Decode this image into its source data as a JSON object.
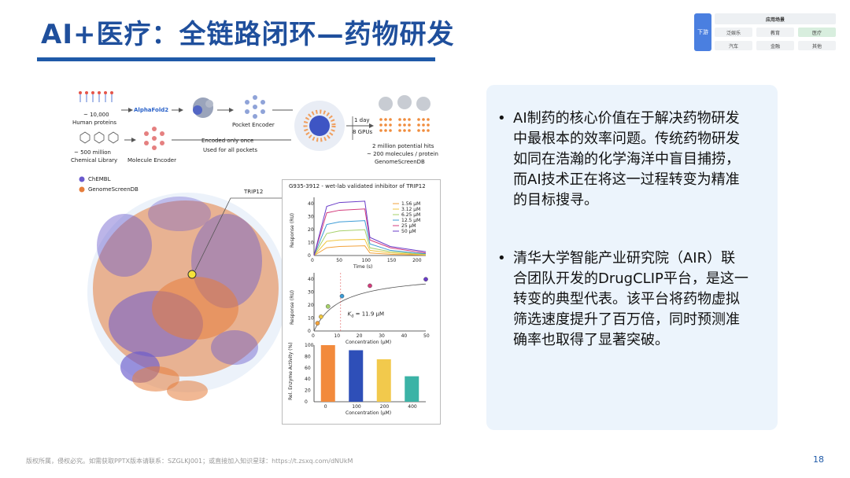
{
  "slide": {
    "title": "AI+医疗：全链路闭环—药物研发",
    "page_number": "18",
    "footer": "版权所属，侵权必究。如需获取PPTX版本请联系：SZGLKJ001；或直接加入知识星球：https://t.zsxq.com/dNUkM"
  },
  "nav": {
    "side_label": "下游",
    "header": "应用场景",
    "items": [
      "泛娱乐",
      "教育",
      "医疗",
      "汽车",
      "金融",
      "其他"
    ],
    "active": "医疗"
  },
  "figure": {
    "pipeline": {
      "human_proteins_count": "~ 10,000",
      "human_proteins": "Human proteins",
      "alphafold": "AlphaFold2",
      "pocket_encoder": "Pocket Encoder",
      "chem_count": "~ 500 million",
      "chem_library": "Chemical Library",
      "molecule_encoder": "Molecule Encoder",
      "encoded_once": "Encoded only once",
      "used_for_all": "Used for all pockets",
      "time": "1 day",
      "gpus": "8 GPUs",
      "hits": "2 million potential hits",
      "per_protein": "~ 200 molecules / protein",
      "db": "GenomeScreenDB"
    },
    "legend": [
      "ChEMBL",
      "GenomeScreenDB"
    ],
    "trip12_label": "TRIP12",
    "panel_title": "G935-3912 - wet-lab validated inhibitor of TRIP12",
    "chart1": {
      "ylabel": "Response (RU)",
      "xlabel": "Time (s)",
      "yticks": [
        "0",
        "10",
        "20",
        "30",
        "40"
      ],
      "xticks": [
        "0",
        "50",
        "100",
        "150",
        "200"
      ],
      "legend": [
        "1.56 μM",
        "3.12 μM",
        "6.25 μM",
        "12.5 μM",
        "25 μM",
        "50 μM"
      ]
    },
    "chart2": {
      "ylabel": "Response (RU)",
      "xlabel": "Concentration (μM)",
      "annotation": "K",
      "annotation_sub": "d",
      "annotation_value": " = 11.9 μM",
      "yticks": [
        "0",
        "10",
        "20",
        "30",
        "40"
      ],
      "xticks": [
        "0",
        "10",
        "20",
        "30",
        "40",
        "50"
      ]
    },
    "chart3": {
      "ylabel": "Rel. Enzyme Activity (%)",
      "xlabel": "Concentration (μM)",
      "yticks": [
        "0",
        "20",
        "40",
        "60",
        "80",
        "100"
      ]
    }
  },
  "chart_data": [
    {
      "type": "line",
      "x": [
        0,
        25,
        50,
        100,
        110,
        150,
        200,
        220
      ],
      "series": [
        {
          "name": "1.56 μM",
          "values": [
            0,
            6,
            7,
            7.5,
            2,
            1,
            0.5,
            0.3
          ]
        },
        {
          "name": "3.12 μM",
          "values": [
            0,
            11,
            12,
            12.5,
            4,
            2,
            1,
            0.5
          ]
        },
        {
          "name": "6.25 μM",
          "values": [
            0,
            17,
            19,
            20,
            6,
            3,
            1.5,
            1
          ]
        },
        {
          "name": "12.5 μM",
          "values": [
            0,
            24,
            26,
            27,
            9,
            4,
            2,
            1.5
          ]
        },
        {
          "name": "25 μM",
          "values": [
            0,
            33,
            35,
            36,
            12,
            6,
            3,
            2
          ]
        },
        {
          "name": "50 μM",
          "values": [
            0,
            38,
            41,
            42,
            14,
            7,
            4,
            3
          ]
        }
      ],
      "ylim": [
        0,
        45
      ],
      "xlim": [
        0,
        220
      ]
    },
    {
      "type": "scatter",
      "x": [
        1.56,
        3.12,
        6.25,
        12.5,
        25,
        50
      ],
      "values": [
        6,
        11,
        19,
        27,
        35,
        40
      ],
      "ylim": [
        0,
        45
      ],
      "xlim": [
        0,
        50
      ]
    },
    {
      "type": "bar",
      "categories": [
        "0",
        "100",
        "200",
        "400"
      ],
      "values": [
        100,
        91,
        75,
        45
      ],
      "colors": [
        "#f28a3c",
        "#2e4fb8",
        "#f2c94c",
        "#3bb3a6"
      ],
      "ylim": [
        0,
        100
      ]
    }
  ],
  "bullets": [
    "AI制药的核心价值在于解决药物研发中最根本的效率问题。传统药物研发如同在浩瀚的化学海洋中盲目捕捞，而AI技术正在将这一过程转变为精准的目标搜寻。",
    "清华大学智能产业研究院（AIR）联合团队开发的DrugCLIP平台，是这一转变的典型代表。该平台将药物虚拟筛选速度提升了百万倍，同时预测准确率也取得了显著突破。"
  ],
  "colors": {
    "title": "#1f4f9c",
    "chembl": "#6a5acd",
    "genome": "#e67e3c",
    "box": "#ecf4fc"
  }
}
